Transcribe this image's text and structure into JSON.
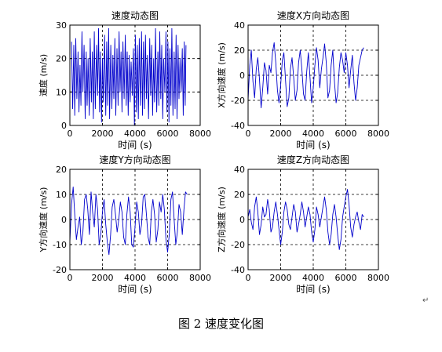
{
  "caption": "图 2 速度变化图",
  "paragraph_mark": "↵",
  "chart_data": [
    {
      "type": "line",
      "title": "速度动态图",
      "xlabel": "时间 (s)",
      "ylabel": "速度 (m/s)",
      "xlim": [
        0,
        8000
      ],
      "ylim": [
        0,
        30
      ],
      "xticks": [
        0,
        2000,
        4000,
        6000,
        8000
      ],
      "yticks": [
        0,
        10,
        20,
        30
      ],
      "grid": true,
      "line_color": "#0000cc",
      "series": [
        {
          "x": [
            100,
            170,
            240,
            300,
            360,
            430,
            500,
            560,
            620,
            680,
            740,
            800,
            870,
            940,
            1000,
            1060,
            1120,
            1190,
            1250,
            1320,
            1380,
            1440,
            1500,
            1560,
            1640,
            1700,
            1760,
            1820,
            1880,
            1940,
            2000,
            2060,
            2130,
            2200,
            2260,
            2320,
            2380,
            2440,
            2510,
            2580,
            2640,
            2700,
            2760,
            2820,
            2890,
            2960,
            3020,
            3080,
            3140,
            3200,
            3260,
            3330,
            3400,
            3460,
            3520,
            3580,
            3640,
            3700,
            3760,
            3830,
            3900,
            3960,
            4020,
            4080,
            4140,
            4200,
            4260,
            4330,
            4400,
            4460,
            4520,
            4580,
            4640,
            4700,
            4760,
            4830,
            4900,
            4960,
            5020,
            5080,
            5140,
            5200,
            5260,
            5330,
            5400,
            5460,
            5520,
            5580,
            5640,
            5700,
            5760,
            5830,
            5900,
            5960,
            6020,
            6080,
            6140,
            6200,
            6260,
            6330,
            6400,
            6460,
            6520,
            6580,
            6640,
            6700,
            6760,
            6830,
            6900,
            6960,
            7020,
            7080,
            7130
          ],
          "values": [
            25,
            5,
            24,
            3,
            26,
            8,
            22,
            4,
            18,
            6,
            28,
            10,
            24,
            2,
            22,
            6,
            20,
            3,
            26,
            7,
            22,
            2,
            28,
            5,
            24,
            9,
            29,
            4,
            22,
            1,
            20,
            7,
            27,
            3,
            25,
            6,
            29,
            2,
            24,
            5,
            21,
            8,
            26,
            3,
            23,
            6,
            28,
            10,
            22,
            4,
            25,
            8,
            27,
            6,
            22,
            3,
            21,
            7,
            19,
            9,
            23,
            0,
            27,
            4,
            24,
            2,
            26,
            6,
            28,
            3,
            25,
            5,
            27,
            8,
            21,
            2,
            26,
            9,
            24,
            3,
            20,
            7,
            29,
            4,
            22,
            6,
            28,
            8,
            24,
            2,
            20,
            10,
            28,
            4,
            25,
            1,
            23,
            6,
            29,
            3,
            22,
            5,
            27,
            2,
            24,
            8,
            20,
            10,
            23,
            3,
            25,
            6,
            24
          ]
        }
      ]
    },
    {
      "type": "line",
      "title": "速度X方向动态图",
      "xlabel": "时间 (s)",
      "ylabel": "X方向速度 (m/s)",
      "xlim": [
        0,
        8000
      ],
      "ylim": [
        -40,
        40
      ],
      "xticks": [
        0,
        2000,
        4000,
        6000,
        8000
      ],
      "yticks": [
        -40,
        -20,
        0,
        20,
        40
      ],
      "grid": true,
      "line_color": "#0000cc",
      "series": [
        {
          "x": [
            0,
            100,
            200,
            300,
            400,
            500,
            600,
            700,
            800,
            900,
            1000,
            1100,
            1200,
            1300,
            1400,
            1500,
            1600,
            1700,
            1800,
            1900,
            2000,
            2100,
            2200,
            2300,
            2400,
            2500,
            2600,
            2700,
            2800,
            2900,
            3000,
            3100,
            3200,
            3300,
            3400,
            3500,
            3600,
            3700,
            3800,
            3900,
            4000,
            4100,
            4200,
            4300,
            4400,
            4500,
            4600,
            4700,
            4800,
            4900,
            5000,
            5100,
            5200,
            5300,
            5400,
            5500,
            5600,
            5700,
            5800,
            5900,
            6000,
            6100,
            6200,
            6300,
            6400,
            6500,
            6600,
            6700,
            6800,
            6900,
            7000,
            7100
          ],
          "values": [
            -20,
            8,
            20,
            -5,
            -18,
            5,
            14,
            -3,
            -26,
            -10,
            10,
            4,
            -15,
            8,
            2,
            18,
            26,
            10,
            -12,
            -22,
            -8,
            12,
            18,
            -4,
            -25,
            -18,
            5,
            14,
            -2,
            -20,
            -12,
            10,
            20,
            5,
            -15,
            -20,
            3,
            18,
            -2,
            -22,
            -10,
            8,
            22,
            12,
            -10,
            5,
            14,
            25,
            10,
            -18,
            -12,
            8,
            20,
            -5,
            -22,
            -14,
            6,
            18,
            12,
            2,
            18,
            8,
            -10,
            4,
            16,
            -6,
            -20,
            -10,
            8,
            14,
            20,
            22
          ]
        }
      ]
    },
    {
      "type": "line",
      "title": "速度Y方向动态图",
      "xlabel": "时间 (s)",
      "ylabel": "Y方向速度 (m/s)",
      "xlim": [
        0,
        8000
      ],
      "ylim": [
        -20,
        20
      ],
      "xticks": [
        0,
        2000,
        4000,
        6000,
        8000
      ],
      "yticks": [
        -20,
        -10,
        0,
        10,
        20
      ],
      "grid": true,
      "line_color": "#0000cc",
      "series": [
        {
          "x": [
            0,
            100,
            200,
            300,
            400,
            500,
            600,
            700,
            800,
            900,
            1000,
            1100,
            1200,
            1300,
            1400,
            1500,
            1600,
            1700,
            1800,
            1900,
            2000,
            2100,
            2200,
            2300,
            2400,
            2500,
            2600,
            2700,
            2800,
            2900,
            3000,
            3100,
            3200,
            3300,
            3400,
            3500,
            3600,
            3700,
            3800,
            3900,
            4000,
            4100,
            4200,
            4300,
            4400,
            4500,
            4600,
            4700,
            4800,
            4900,
            5000,
            5100,
            5200,
            5300,
            5400,
            5500,
            5600,
            5700,
            5800,
            5900,
            6000,
            6100,
            6200,
            6300,
            6400,
            6500,
            6600,
            6700,
            6800,
            6900,
            7000,
            7100,
            7200
          ],
          "values": [
            -9,
            6,
            13,
            2,
            -8,
            -3,
            1,
            -10,
            -5,
            8,
            10,
            4,
            -6,
            11,
            3,
            -3,
            10,
            4,
            -10,
            -6,
            3,
            8,
            -2,
            -9,
            -14,
            -6,
            5,
            8,
            2,
            -5,
            0,
            7,
            3,
            -7,
            -10,
            2,
            9,
            3,
            -10,
            -11,
            -3,
            7,
            3,
            -6,
            -2,
            9,
            10,
            2,
            -7,
            -10,
            3,
            8,
            2,
            -9,
            -4,
            7,
            3,
            10,
            4,
            -8,
            -13,
            -6,
            8,
            11,
            0,
            -10,
            -5,
            6,
            3,
            -6,
            4,
            11,
            10
          ]
        }
      ]
    },
    {
      "type": "line",
      "title": "速度Z方向动态图",
      "xlabel": "时间 (s)",
      "ylabel": "Z方向速度 (m/s)",
      "xlim": [
        0,
        8000
      ],
      "ylim": [
        -40,
        40
      ],
      "xticks": [
        0,
        2000,
        4000,
        6000,
        8000
      ],
      "yticks": [
        -40,
        -20,
        0,
        20,
        40
      ],
      "grid": true,
      "line_color": "#0000cc",
      "series": [
        {
          "x": [
            0,
            100,
            200,
            300,
            400,
            500,
            600,
            700,
            800,
            900,
            1000,
            1100,
            1200,
            1300,
            1400,
            1500,
            1600,
            1700,
            1800,
            1900,
            2000,
            2100,
            2200,
            2300,
            2400,
            2500,
            2600,
            2700,
            2800,
            2900,
            3000,
            3100,
            3200,
            3300,
            3400,
            3500,
            3600,
            3700,
            3800,
            3900,
            4000,
            4100,
            4200,
            4300,
            4400,
            4500,
            4600,
            4700,
            4800,
            4900,
            5000,
            5100,
            5200,
            5300,
            5400,
            5500,
            5600,
            5700,
            5800,
            5900,
            6000,
            6100,
            6200,
            6300,
            6400,
            6500,
            6600,
            6700,
            6800,
            6900,
            7000,
            7100
          ],
          "values": [
            2,
            8,
            -2,
            -8,
            10,
            18,
            6,
            -12,
            -4,
            10,
            2,
            4,
            16,
            8,
            -10,
            -6,
            6,
            14,
            4,
            -8,
            -20,
            -10,
            6,
            14,
            8,
            -4,
            -8,
            2,
            12,
            6,
            -10,
            -4,
            4,
            14,
            6,
            -6,
            2,
            10,
            4,
            -10,
            -18,
            -8,
            10,
            4,
            -6,
            2,
            10,
            18,
            8,
            -10,
            -20,
            -12,
            4,
            12,
            2,
            -12,
            -24,
            -16,
            2,
            10,
            18,
            24,
            12,
            -6,
            -14,
            -4,
            2,
            6,
            -2,
            -8,
            4,
            2
          ]
        }
      ]
    }
  ]
}
